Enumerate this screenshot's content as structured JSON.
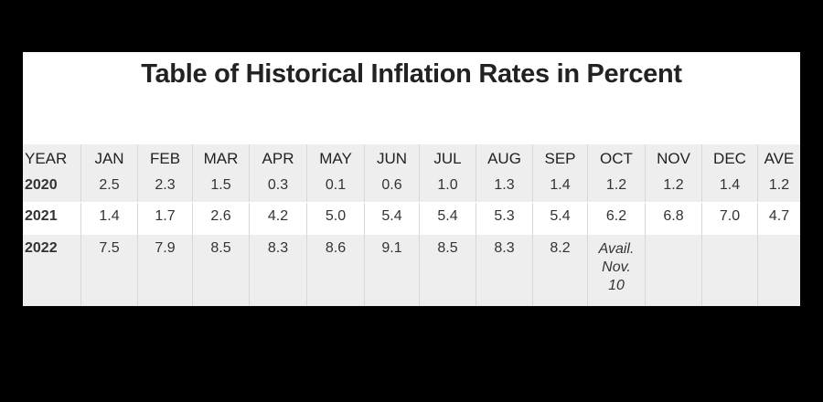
{
  "header": {
    "title": "Table of Historical Inflation Rates in Percent"
  },
  "table": {
    "columns": [
      "YEAR",
      "JAN",
      "FEB",
      "MAR",
      "APR",
      "MAY",
      "JUN",
      "JUL",
      "AUG",
      "SEP",
      "OCT",
      "NOV",
      "DEC",
      "AVE"
    ],
    "rows": [
      [
        "2020",
        "2.5",
        "2.3",
        "1.5",
        "0.3",
        "0.1",
        "0.6",
        "1.0",
        "1.3",
        "1.4",
        "1.2",
        "1.2",
        "1.4",
        "1.2"
      ],
      [
        "2021",
        "1.4",
        "1.7",
        "2.6",
        "4.2",
        "5.0",
        "5.4",
        "5.4",
        "5.3",
        "5.4",
        "6.2",
        "6.8",
        "7.0",
        "4.7"
      ],
      [
        "2022",
        "7.5",
        "7.9",
        "8.5",
        "8.3",
        "8.6",
        "9.1",
        "8.5",
        "8.3",
        "8.2",
        "Avail. Nov. 10"
      ]
    ]
  }
}
